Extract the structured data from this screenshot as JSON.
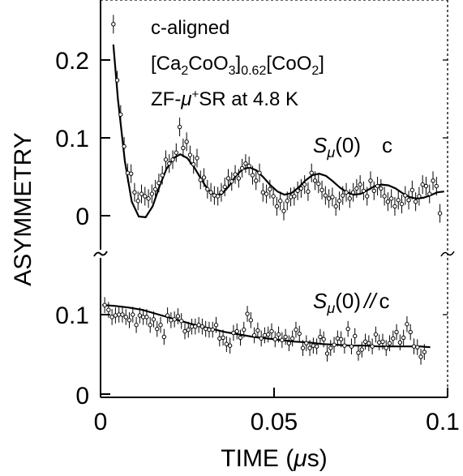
{
  "chart_data": [
    {
      "type": "scatter",
      "panel": "top",
      "annotations": [
        "c-aligned",
        "[Ca2CoO3]0.62[CoO2]",
        "ZF-μ+SR at 4.8 K"
      ],
      "series_label": "Sμ(0) ⊥ c",
      "xlabel": "TIME (μs)",
      "ylabel": "ASYMMETRY",
      "xlim": [
        0,
        0.1
      ],
      "ylim": [
        -0.03,
        0.27
      ],
      "yticks": [
        0,
        0.1,
        0.2
      ],
      "ytick_labels": [
        "0",
        "0.1",
        "0.2"
      ],
      "points": [
        [
          0.0037,
          0.246
        ],
        [
          0.0048,
          0.174
        ],
        [
          0.0058,
          0.13
        ],
        [
          0.0068,
          0.089
        ],
        [
          0.0078,
          0.055
        ],
        [
          0.0088,
          0.054
        ],
        [
          0.0098,
          0.03
        ],
        [
          0.0108,
          0.019
        ],
        [
          0.0118,
          0.028
        ],
        [
          0.0128,
          0.025
        ],
        [
          0.0138,
          0.022
        ],
        [
          0.0148,
          0.028
        ],
        [
          0.0158,
          0.034
        ],
        [
          0.0168,
          0.042
        ],
        [
          0.0178,
          0.052
        ],
        [
          0.0188,
          0.072
        ],
        [
          0.0198,
          0.067
        ],
        [
          0.0208,
          0.072
        ],
        [
          0.0218,
          0.081
        ],
        [
          0.0228,
          0.114
        ],
        [
          0.0238,
          0.087
        ],
        [
          0.0248,
          0.095
        ],
        [
          0.0258,
          0.078
        ],
        [
          0.0268,
          0.066
        ],
        [
          0.0278,
          0.074
        ],
        [
          0.0288,
          0.046
        ],
        [
          0.0298,
          0.049
        ],
        [
          0.0308,
          0.034
        ],
        [
          0.0318,
          0.03
        ],
        [
          0.0328,
          0.026
        ],
        [
          0.0338,
          0.025
        ],
        [
          0.0348,
          0.03
        ],
        [
          0.0358,
          0.037
        ],
        [
          0.0368,
          0.048
        ],
        [
          0.0378,
          0.044
        ],
        [
          0.0388,
          0.053
        ],
        [
          0.0398,
          0.048
        ],
        [
          0.0408,
          0.061
        ],
        [
          0.0418,
          0.067
        ],
        [
          0.0428,
          0.064
        ],
        [
          0.0438,
          0.052
        ],
        [
          0.0448,
          0.045
        ],
        [
          0.0458,
          0.055
        ],
        [
          0.0468,
          0.03
        ],
        [
          0.0478,
          0.028
        ],
        [
          0.0488,
          0.034
        ],
        [
          0.0498,
          0.025
        ],
        [
          0.0508,
          0.012
        ],
        [
          0.0518,
          0.019
        ],
        [
          0.0528,
          0.006
        ],
        [
          0.0538,
          0.019
        ],
        [
          0.0548,
          0.024
        ],
        [
          0.0558,
          0.025
        ],
        [
          0.0568,
          0.032
        ],
        [
          0.0578,
          0.035
        ],
        [
          0.0588,
          0.04
        ],
        [
          0.0598,
          0.031
        ],
        [
          0.0608,
          0.055
        ],
        [
          0.0618,
          0.045
        ],
        [
          0.0628,
          0.041
        ],
        [
          0.0638,
          0.033
        ],
        [
          0.0648,
          0.026
        ],
        [
          0.0658,
          0.022
        ],
        [
          0.0668,
          0.024
        ],
        [
          0.0678,
          0.012
        ],
        [
          0.0688,
          0.019
        ],
        [
          0.0698,
          0.026
        ],
        [
          0.0708,
          0.03
        ],
        [
          0.0718,
          0.022
        ],
        [
          0.0728,
          0.03
        ],
        [
          0.0738,
          0.035
        ],
        [
          0.0748,
          0.04
        ],
        [
          0.0758,
          0.032
        ],
        [
          0.0768,
          0.025
        ],
        [
          0.0778,
          0.045
        ],
        [
          0.0788,
          0.032
        ],
        [
          0.0798,
          0.038
        ],
        [
          0.0808,
          0.035
        ],
        [
          0.0818,
          0.025
        ],
        [
          0.0828,
          0.018
        ],
        [
          0.0838,
          0.022
        ],
        [
          0.0848,
          0.012
        ],
        [
          0.0858,
          0.02
        ],
        [
          0.0868,
          0.015
        ],
        [
          0.0878,
          0.026
        ],
        [
          0.0888,
          0.02
        ],
        [
          0.0898,
          0.033
        ],
        [
          0.0908,
          0.018
        ],
        [
          0.0918,
          0.025
        ],
        [
          0.0928,
          0.04
        ],
        [
          0.0938,
          0.038
        ],
        [
          0.0948,
          0.028
        ],
        [
          0.0958,
          0.045
        ],
        [
          0.0968,
          0.038
        ],
        [
          0.0978,
          0.003
        ]
      ],
      "fit_curve": [
        [
          0.0037,
          0.22
        ],
        [
          0.005,
          0.15
        ],
        [
          0.007,
          0.07
        ],
        [
          0.009,
          0.018
        ],
        [
          0.011,
          -0.001
        ],
        [
          0.013,
          -0.002
        ],
        [
          0.015,
          0.012
        ],
        [
          0.017,
          0.038
        ],
        [
          0.019,
          0.06
        ],
        [
          0.021,
          0.074
        ],
        [
          0.023,
          0.079
        ],
        [
          0.025,
          0.074
        ],
        [
          0.027,
          0.062
        ],
        [
          0.029,
          0.047
        ],
        [
          0.031,
          0.033
        ],
        [
          0.033,
          0.026
        ],
        [
          0.035,
          0.028
        ],
        [
          0.037,
          0.038
        ],
        [
          0.039,
          0.051
        ],
        [
          0.041,
          0.06
        ],
        [
          0.043,
          0.062
        ],
        [
          0.045,
          0.058
        ],
        [
          0.047,
          0.049
        ],
        [
          0.049,
          0.039
        ],
        [
          0.051,
          0.031
        ],
        [
          0.053,
          0.027
        ],
        [
          0.055,
          0.029
        ],
        [
          0.057,
          0.036
        ],
        [
          0.059,
          0.045
        ],
        [
          0.061,
          0.052
        ],
        [
          0.063,
          0.054
        ],
        [
          0.065,
          0.051
        ],
        [
          0.067,
          0.044
        ],
        [
          0.069,
          0.036
        ],
        [
          0.071,
          0.03
        ],
        [
          0.073,
          0.027
        ],
        [
          0.075,
          0.028
        ],
        [
          0.077,
          0.033
        ],
        [
          0.079,
          0.038
        ],
        [
          0.081,
          0.04
        ],
        [
          0.083,
          0.039
        ],
        [
          0.085,
          0.035
        ],
        [
          0.087,
          0.029
        ],
        [
          0.089,
          0.024
        ],
        [
          0.091,
          0.022
        ],
        [
          0.093,
          0.023
        ],
        [
          0.095,
          0.026
        ],
        [
          0.097,
          0.03
        ],
        [
          0.099,
          0.031
        ]
      ]
    },
    {
      "type": "scatter",
      "panel": "bottom",
      "series_label": "Sμ(0) //c",
      "xlabel": "TIME (μs)",
      "ylabel": "ASYMMETRY",
      "xlim": [
        0,
        0.1
      ],
      "ylim": [
        0,
        0.14
      ],
      "xticks": [
        0,
        0.05,
        0.1
      ],
      "xtick_labels": [
        "0",
        "0.05",
        "0.1"
      ],
      "yticks": [
        0,
        0.1
      ],
      "ytick_labels": [
        "0",
        "0.1"
      ],
      "points": [
        [
          0.0012,
          0.112
        ],
        [
          0.0023,
          0.106
        ],
        [
          0.0033,
          0.097
        ],
        [
          0.0043,
          0.099
        ],
        [
          0.0053,
          0.1
        ],
        [
          0.0063,
          0.1
        ],
        [
          0.0073,
          0.097
        ],
        [
          0.0083,
          0.093
        ],
        [
          0.0093,
          0.1
        ],
        [
          0.0103,
          0.087
        ],
        [
          0.0113,
          0.099
        ],
        [
          0.0123,
          0.097
        ],
        [
          0.0133,
          0.097
        ],
        [
          0.0143,
          0.087
        ],
        [
          0.0153,
          0.094
        ],
        [
          0.0163,
          0.082
        ],
        [
          0.0173,
          0.087
        ],
        [
          0.0183,
          0.072
        ],
        [
          0.0193,
          0.099
        ],
        [
          0.0203,
          0.093
        ],
        [
          0.0213,
          0.094
        ],
        [
          0.0223,
          0.098
        ],
        [
          0.0233,
          0.092
        ],
        [
          0.0243,
          0.079
        ],
        [
          0.0253,
          0.081
        ],
        [
          0.0263,
          0.085
        ],
        [
          0.0273,
          0.085
        ],
        [
          0.0283,
          0.087
        ],
        [
          0.0293,
          0.085
        ],
        [
          0.0303,
          0.082
        ],
        [
          0.0313,
          0.081
        ],
        [
          0.0323,
          0.081
        ],
        [
          0.0333,
          0.087
        ],
        [
          0.0343,
          0.07
        ],
        [
          0.0353,
          0.071
        ],
        [
          0.0363,
          0.063
        ],
        [
          0.0373,
          0.061
        ],
        [
          0.0383,
          0.077
        ],
        [
          0.0393,
          0.079
        ],
        [
          0.0403,
          0.071
        ],
        [
          0.0413,
          0.081
        ],
        [
          0.0423,
          0.101
        ],
        [
          0.0433,
          0.093
        ],
        [
          0.0443,
          0.074
        ],
        [
          0.0453,
          0.08
        ],
        [
          0.0463,
          0.07
        ],
        [
          0.0473,
          0.074
        ],
        [
          0.0483,
          0.075
        ],
        [
          0.0493,
          0.079
        ],
        [
          0.0503,
          0.069
        ],
        [
          0.0513,
          0.075
        ],
        [
          0.0523,
          0.068
        ],
        [
          0.0533,
          0.072
        ],
        [
          0.0543,
          0.064
        ],
        [
          0.0553,
          0.07
        ],
        [
          0.0563,
          0.081
        ],
        [
          0.0573,
          0.076
        ],
        [
          0.0583,
          0.058
        ],
        [
          0.0593,
          0.064
        ],
        [
          0.0603,
          0.058
        ],
        [
          0.0613,
          0.061
        ],
        [
          0.0623,
          0.06
        ],
        [
          0.0633,
          0.072
        ],
        [
          0.0643,
          0.069
        ],
        [
          0.0653,
          0.051
        ],
        [
          0.0663,
          0.058
        ],
        [
          0.0673,
          0.062
        ],
        [
          0.0683,
          0.07
        ],
        [
          0.0693,
          0.069
        ],
        [
          0.0703,
          0.061
        ],
        [
          0.0713,
          0.082
        ],
        [
          0.0723,
          0.06
        ],
        [
          0.0733,
          0.073
        ],
        [
          0.0743,
          0.052
        ],
        [
          0.0753,
          0.056
        ],
        [
          0.0763,
          0.066
        ],
        [
          0.0773,
          0.064
        ],
        [
          0.0783,
          0.06
        ],
        [
          0.0793,
          0.075
        ],
        [
          0.0803,
          0.065
        ],
        [
          0.0813,
          0.066
        ],
        [
          0.0823,
          0.058
        ],
        [
          0.0833,
          0.064
        ],
        [
          0.0843,
          0.07
        ],
        [
          0.0853,
          0.078
        ],
        [
          0.0863,
          0.065
        ],
        [
          0.0873,
          0.071
        ],
        [
          0.0883,
          0.088
        ],
        [
          0.0893,
          0.078
        ],
        [
          0.0903,
          0.06
        ],
        [
          0.0913,
          0.059
        ],
        [
          0.0923,
          0.047
        ],
        [
          0.0933,
          0.053
        ]
      ],
      "fit_curve": [
        [
          0.0005,
          0.112
        ],
        [
          0.004,
          0.111
        ],
        [
          0.008,
          0.109
        ],
        [
          0.012,
          0.106
        ],
        [
          0.016,
          0.101
        ],
        [
          0.02,
          0.096
        ],
        [
          0.024,
          0.091
        ],
        [
          0.028,
          0.086
        ],
        [
          0.032,
          0.082
        ],
        [
          0.036,
          0.078
        ],
        [
          0.04,
          0.075
        ],
        [
          0.044,
          0.072
        ],
        [
          0.048,
          0.07
        ],
        [
          0.052,
          0.068
        ],
        [
          0.056,
          0.066
        ],
        [
          0.06,
          0.065
        ],
        [
          0.064,
          0.063
        ],
        [
          0.068,
          0.062
        ],
        [
          0.072,
          0.061
        ],
        [
          0.076,
          0.061
        ],
        [
          0.08,
          0.06
        ],
        [
          0.084,
          0.06
        ],
        [
          0.088,
          0.06
        ],
        [
          0.092,
          0.06
        ],
        [
          0.095,
          0.059
        ]
      ]
    }
  ],
  "text": {
    "note1": "c-aligned",
    "note2_a": "[Ca",
    "note2_sub1": "2",
    "note2_b": "CoO",
    "note2_sub2": "3",
    "note2_c": "]",
    "note2_sub3": "0.62",
    "note2_d": "[CoO",
    "note2_sub4": "2",
    "note2_e": "]",
    "note3_a": "ZF-",
    "note3_mu": "μ",
    "note3_sup": "+",
    "note3_b": "SR at 4.8 K",
    "top_label_S": "S",
    "top_label_mu": "μ",
    "top_label_rest": "(0)",
    "top_label_c": "c",
    "bot_label_S": "S",
    "bot_label_mu": "μ",
    "bot_label_rest": "(0)",
    "bot_label_par": "//",
    "bot_label_c": "c",
    "ylabel": "ASYMMETRY",
    "xlabel_a": "TIME (",
    "xlabel_mu": "μ",
    "xlabel_b": "s)",
    "tick_x0": "0",
    "tick_x1": "0.05",
    "tick_x2": "0.1",
    "tick_top_y0": "0",
    "tick_top_y1": "0.1",
    "tick_top_y2": "0.2",
    "tick_bot_y0": "0",
    "tick_bot_y1": "0.1"
  }
}
